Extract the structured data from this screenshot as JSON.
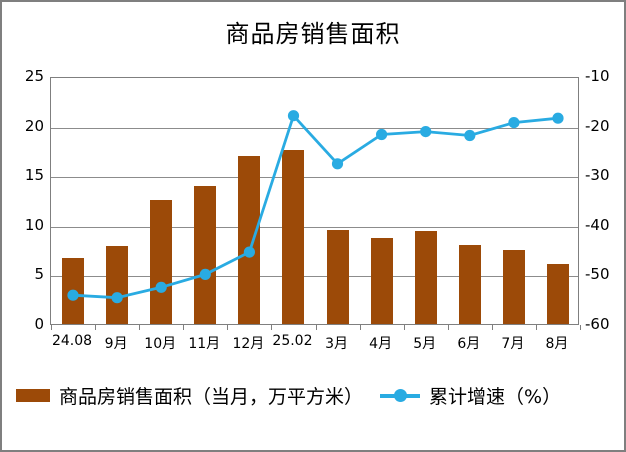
{
  "window": {
    "background": "#FFFFFF",
    "border_color": "#7F7F7F",
    "grid_color": "#8C8C8C",
    "text_color": "#000000"
  },
  "chart_data": {
    "type": "combo",
    "title": "商品房销售面积",
    "categories": [
      "24.08",
      "9月",
      "10月",
      "11月",
      "12月",
      "25.02",
      "3月",
      "4月",
      "5月",
      "6月",
      "7月",
      "8月"
    ],
    "series": [
      {
        "name": "商品房销售面积（当月，万平方米）",
        "type": "bar",
        "axis": "left",
        "color": "#9C4A08",
        "values": [
          6.7,
          7.9,
          12.5,
          13.9,
          16.9,
          17.5,
          9.5,
          8.7,
          9.4,
          8.0,
          7.5,
          6.0
        ]
      },
      {
        "name": "累计增速（%）",
        "type": "line",
        "axis": "right",
        "color": "#29ABE2",
        "values": [
          -53.8,
          -54.3,
          -52.2,
          -49.6,
          -45.1,
          -17.6,
          -27.3,
          -21.4,
          -20.8,
          -21.6,
          -19.0,
          -18.1
        ]
      }
    ],
    "left_axis": {
      "min": 0,
      "max": 25,
      "ticks": [
        25,
        20,
        15,
        10,
        5,
        0
      ]
    },
    "right_axis": {
      "min": -60,
      "max": -10,
      "ticks": [
        -10,
        -20,
        -30,
        -40,
        -50,
        -60
      ]
    },
    "grid": true,
    "legend_position": "bottom"
  }
}
